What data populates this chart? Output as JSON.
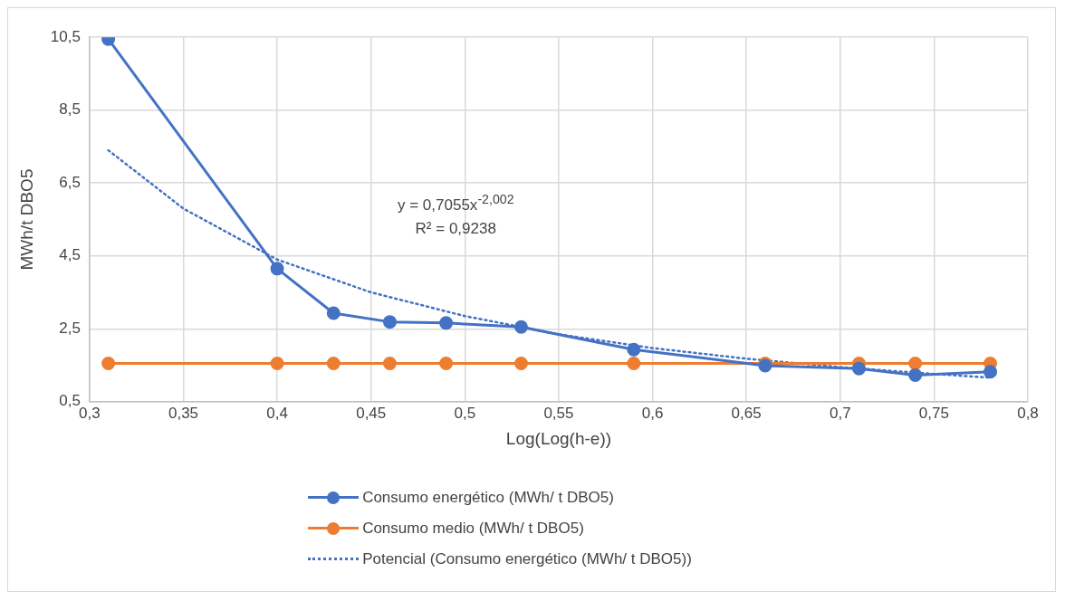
{
  "chart_data": {
    "type": "line",
    "xlabel": "Log(Log(h-e))",
    "ylabel": "MWh/t DBO5",
    "x": [
      0.31,
      0.4,
      0.43,
      0.46,
      0.49,
      0.53,
      0.59,
      0.66,
      0.71,
      0.74,
      0.78
    ],
    "series": [
      {
        "name": "Consumo energético (MWh/ t DBO5)",
        "color": "#4472c4",
        "marker": "circle",
        "line_style": "solid",
        "values": [
          10.45,
          4.15,
          2.93,
          2.69,
          2.66,
          2.55,
          1.93,
          1.49,
          1.41,
          1.23,
          1.32
        ]
      },
      {
        "name": "Consumo medio (MWh/ t DBO5)",
        "color": "#ed7d31",
        "marker": "circle",
        "line_style": "solid",
        "values": [
          1.55,
          1.55,
          1.55,
          1.55,
          1.55,
          1.55,
          1.55,
          1.55,
          1.55,
          1.55,
          1.55
        ]
      },
      {
        "name": "Potencial (Consumo energético (MWh/ t DBO5))",
        "color": "#4472c4",
        "marker": "none",
        "line_style": "dotted",
        "x": [
          0.31,
          0.35,
          0.4,
          0.45,
          0.5,
          0.55,
          0.6,
          0.65,
          0.7,
          0.75,
          0.78
        ],
        "values": [
          7.4,
          5.8,
          4.4,
          3.5,
          2.85,
          2.35,
          1.97,
          1.68,
          1.45,
          1.26,
          1.16
        ]
      }
    ],
    "xlim": [
      0.3,
      0.8
    ],
    "xticks": [
      {
        "value": 0.3,
        "label": "0,3"
      },
      {
        "value": 0.35,
        "label": "0,35"
      },
      {
        "value": 0.4,
        "label": "0,4"
      },
      {
        "value": 0.45,
        "label": "0,45"
      },
      {
        "value": 0.5,
        "label": "0,5"
      },
      {
        "value": 0.55,
        "label": "0,55"
      },
      {
        "value": 0.6,
        "label": "0,6"
      },
      {
        "value": 0.65,
        "label": "0,65"
      },
      {
        "value": 0.7,
        "label": "0,7"
      },
      {
        "value": 0.75,
        "label": "0,75"
      },
      {
        "value": 0.8,
        "label": "0,8"
      }
    ],
    "ylim": [
      0.5,
      10.5
    ],
    "yticks": [
      {
        "value": 0.5,
        "label": "0,5"
      },
      {
        "value": 2.5,
        "label": "2,5"
      },
      {
        "value": 4.5,
        "label": "4,5"
      },
      {
        "value": 6.5,
        "label": "6,5"
      },
      {
        "value": 8.5,
        "label": "8,5"
      },
      {
        "value": 10.5,
        "label": "10,5"
      }
    ],
    "grid": true,
    "legend": "bottom",
    "annotations": [
      "y = 0,7055x$^{-2,002}$",
      "R² = 0,9238"
    ]
  }
}
